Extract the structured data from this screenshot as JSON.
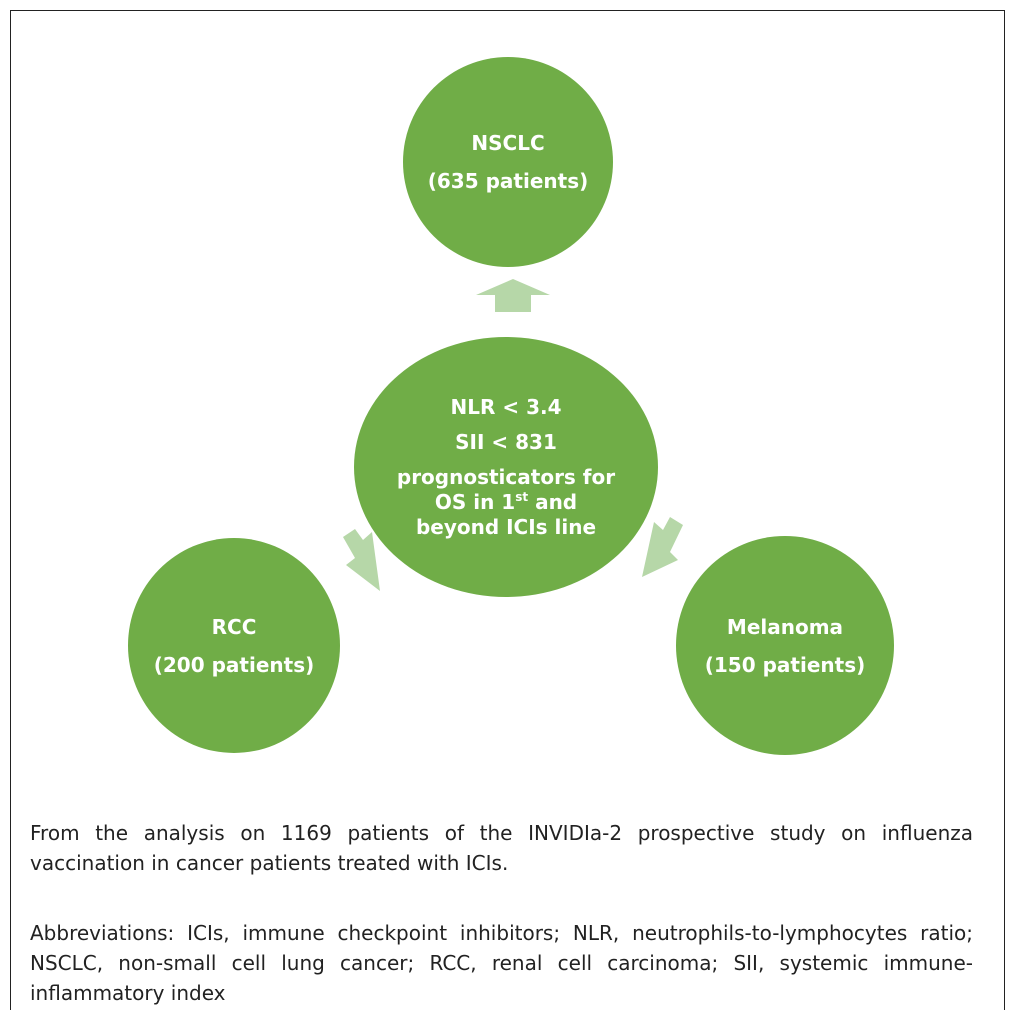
{
  "nodes": {
    "top": {
      "title": "NSCLC",
      "subtitle": "(635 patients)"
    },
    "center": {
      "line1": "NLR < 3.4",
      "line2": "SII < 831",
      "line3": "prognosticators for",
      "line4_pre": "OS in 1",
      "line4_sup": "st",
      "line4_post": " and",
      "line5": "beyond ICIs line"
    },
    "left": {
      "title": "RCC",
      "subtitle": "(200 patients)"
    },
    "right": {
      "title": "Melanoma",
      "subtitle": "(150 patients)"
    }
  },
  "colors": {
    "circle": "#70ad47",
    "arrow": "#b6d7a8",
    "text": "#ffffff"
  },
  "caption": {
    "source": "From the analysis on 1169 patients of the INVIDIa-2 prospective study on influenza vaccination in cancer patients treated with ICIs.",
    "abbreviations": "Abbreviations: ICIs, immune checkpoint inhibitors; NLR, neutrophils-to-lymphocytes ratio; NSCLC, non-small cell lung cancer; RCC, renal cell carcinoma; SII, systemic immune-inflammatory index"
  }
}
